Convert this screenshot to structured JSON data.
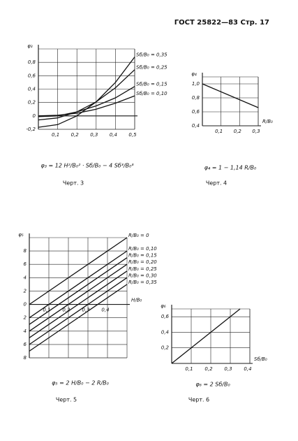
{
  "header": "ГОСТ 25822—83 Стр. 17",
  "chart_data": [
    {
      "type": "line",
      "ylabel": "φ₃",
      "x": [
        0,
        0.1,
        0.2,
        0.3,
        0.4,
        0.5
      ],
      "series": [
        {
          "name": "Sб/B₀ = 0,35",
          "color": "#111",
          "values": [
            -0.17,
            -0.13,
            0.0,
            0.21,
            0.5,
            0.88
          ]
        },
        {
          "name": "Sб/B₀ = 0,25",
          "color": "#111",
          "values": [
            -0.06,
            -0.03,
            0.06,
            0.21,
            0.42,
            0.69
          ]
        },
        {
          "name": "Sб/B₀ = 0,15",
          "color": "#111",
          "values": [
            -0.01,
            0.0,
            0.06,
            0.15,
            0.27,
            0.44
          ]
        },
        {
          "name": "Sб/B₀ = 0,10",
          "color": "#111",
          "values": [
            0.0,
            0.01,
            0.04,
            0.1,
            0.19,
            0.3
          ]
        }
      ],
      "xlim": [
        0,
        0.5
      ],
      "ylim": [
        -0.2,
        1.0
      ],
      "xticks": [
        {
          "value": 0.1,
          "label": "0,1"
        },
        {
          "value": 0.2,
          "label": "0,2"
        },
        {
          "value": 0.3,
          "label": "0,3"
        },
        {
          "value": 0.4,
          "label": "0,4"
        },
        {
          "value": 0.5,
          "label": "0,5"
        }
      ],
      "yticks": [
        {
          "value": -0.2,
          "label": "-0,2"
        },
        0,
        {
          "value": 0.2,
          "label": "0,2"
        },
        {
          "value": 0.4,
          "label": "0,4"
        },
        {
          "value": 0.6,
          "label": "0,6"
        },
        {
          "value": 0.8,
          "label": "0,8"
        }
      ],
      "grid": true,
      "formula": "φ₃ = 12 H²/B₀² · Sб/B₀ − 4 Sб³/B₀³",
      "caption": "Черт. 3"
    },
    {
      "type": "line",
      "ylabel": "φ₄",
      "xlabel": "R/B₀",
      "x": [
        0,
        0.3
      ],
      "series": [
        {
          "name": null,
          "color": "#111",
          "values": [
            1.0,
            0.66
          ]
        }
      ],
      "xlim": [
        0,
        0.3
      ],
      "ylim": [
        0.4,
        1.1
      ],
      "xticks": [
        {
          "value": 0.1,
          "label": "0,1"
        },
        {
          "value": 0.2,
          "label": "0,2"
        },
        {
          "value": 0.3,
          "label": "0,3"
        }
      ],
      "yticks": [
        {
          "value": 0.4,
          "label": "0,4"
        },
        {
          "value": 0.6,
          "label": "0,6"
        },
        {
          "value": 0.8,
          "label": "0,8"
        },
        {
          "value": 1.0,
          "label": "1,0"
        }
      ],
      "grid": true,
      "formula": "φ₄ = 1 − 1,14 R/B₀",
      "caption": "Черт. 4"
    },
    {
      "type": "line",
      "ylabel": "φ₅",
      "xlabel": "H/B₀",
      "x": [
        0,
        0.5
      ],
      "series": [
        {
          "name": "R/B₀ = 0",
          "color": "#111",
          "values": [
            0.0,
            1.0
          ]
        },
        {
          "name": "R/B₀ = 0,10",
          "color": "#111",
          "values": [
            -0.2,
            0.8
          ]
        },
        {
          "name": "R/B₀ = 0,15",
          "color": "#111",
          "values": [
            -0.3,
            0.7
          ]
        },
        {
          "name": "R/B₀ = 0,20",
          "color": "#111",
          "values": [
            -0.4,
            0.6
          ]
        },
        {
          "name": "R/B₀ = 0,25",
          "color": "#111",
          "values": [
            -0.5,
            0.5
          ]
        },
        {
          "name": "R/B₀ = 0,30",
          "color": "#111",
          "values": [
            -0.6,
            0.4
          ]
        },
        {
          "name": "R/B₀ = 0,35",
          "color": "#111",
          "values": [
            -0.7,
            0.3
          ]
        }
      ],
      "xlim": [
        0,
        0.5
      ],
      "ylim": [
        -0.8,
        1.0
      ],
      "xticks": [
        {
          "value": 0.1,
          "label": "0,1"
        },
        {
          "value": 0.2,
          "label": "0,2"
        },
        {
          "value": 0.3,
          "label": "0,3"
        },
        {
          "value": 0.4,
          "label": "0,4"
        }
      ],
      "yticks": [
        {
          "value": -0.8,
          "label": "8"
        },
        {
          "value": -0.6,
          "label": "6"
        },
        {
          "value": -0.4,
          "label": "4"
        },
        {
          "value": -0.2,
          "label": "2"
        },
        0,
        {
          "value": 0.2,
          "label": "2"
        },
        {
          "value": 0.4,
          "label": "4"
        },
        {
          "value": 0.6,
          "label": "6"
        },
        {
          "value": 0.8,
          "label": "8"
        }
      ],
      "grid": true,
      "formula": "φ₅ = 2 H/B₀ − 2 R/B₀",
      "caption": "Черт. 5"
    },
    {
      "type": "line",
      "ylabel": "φ₆",
      "xlabel": "Sб/B₀",
      "x": [
        0,
        0.35
      ],
      "series": [
        {
          "name": null,
          "color": "#111",
          "values": [
            0.0,
            0.7
          ]
        }
      ],
      "xlim": [
        0,
        0.4
      ],
      "ylim": [
        0,
        0.7
      ],
      "xticks": [
        {
          "value": 0.1,
          "label": "0,1"
        },
        {
          "value": 0.2,
          "label": "0,2"
        },
        {
          "value": 0.3,
          "label": "0,3"
        },
        {
          "value": 0.4,
          "label": "0,4"
        }
      ],
      "yticks": [
        {
          "value": 0.2,
          "label": "0,2"
        },
        {
          "value": 0.4,
          "label": "0,4"
        },
        {
          "value": 0.6,
          "label": "0,6"
        }
      ],
      "grid": true,
      "formula": "φ₆ = 2 Sб/B₀",
      "caption": "Черт. 6"
    }
  ]
}
